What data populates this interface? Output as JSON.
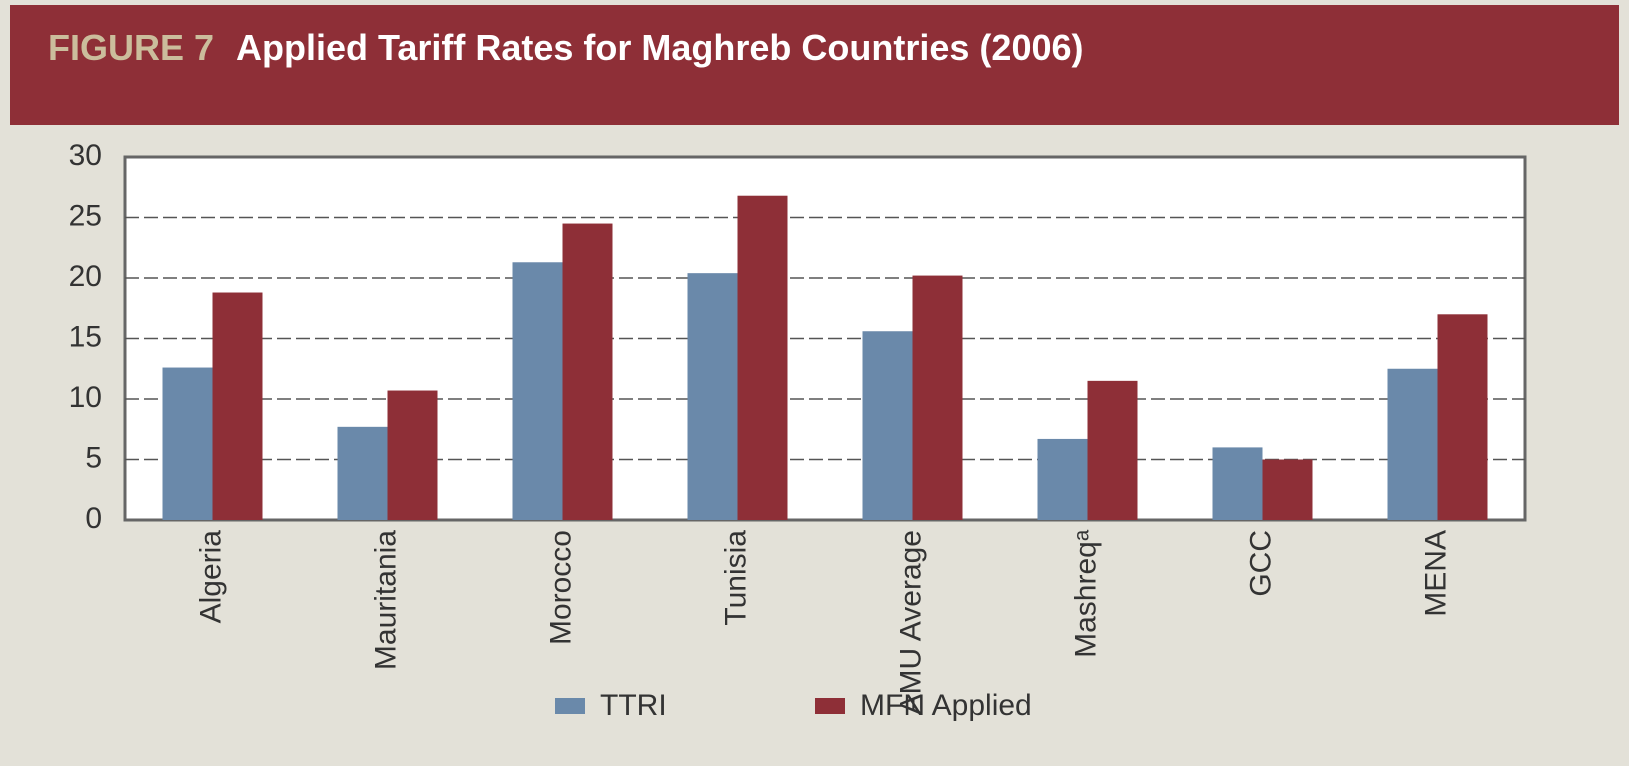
{
  "chart_data": {
    "type": "bar",
    "figure_label": "FIGURE 7",
    "title": "Applied Tariff Rates for Maghreb Countries (2006)",
    "categories": [
      "Algeria",
      "Mauritania",
      "Morocco",
      "Tunisia",
      "AMU Average",
      "Mashreqᵃ",
      "GCC",
      "MENA"
    ],
    "series": [
      {
        "name": "TTRI",
        "color": "#6a89aa",
        "values": [
          12.6,
          7.7,
          21.3,
          20.4,
          15.6,
          6.7,
          6.0,
          12.5
        ]
      },
      {
        "name": "MFN Applied",
        "color": "#8e2f37",
        "values": [
          18.8,
          10.7,
          24.5,
          26.8,
          20.2,
          11.5,
          5.0,
          17.0
        ]
      }
    ],
    "ylim": [
      0,
      30
    ],
    "yticks": [
      0,
      5,
      10,
      15,
      20,
      25,
      30
    ],
    "grid": true
  }
}
